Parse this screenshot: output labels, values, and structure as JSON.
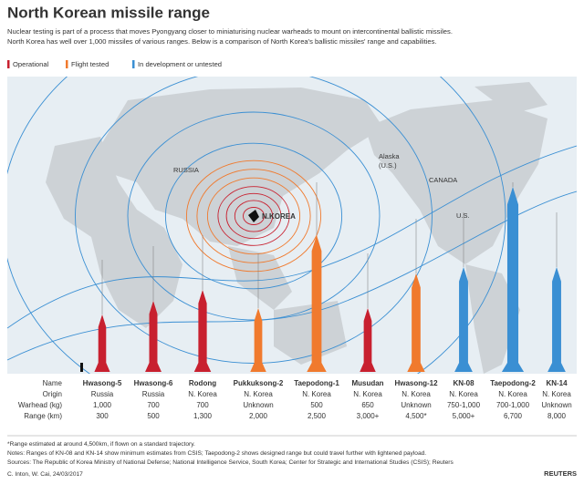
{
  "header": {
    "title": "North Korean missile range",
    "intro": [
      "Nuclear testing is part of a process that moves Pyongyang closer to miniaturising nuclear warheads to mount on intercontinental ballistic missiles.",
      "North Korea has well over 1,000 missiles of various ranges. Below is a comparison of North Korea's ballistic missiles' range and capabilities."
    ]
  },
  "legend": [
    {
      "label": "Operational",
      "color": "#c8202f"
    },
    {
      "label": "Flight tested",
      "color": "#f07a2e"
    },
    {
      "label": "In development or untested",
      "color": "#3a8fd3"
    }
  ],
  "map_labels": {
    "russia": "RUSSIA",
    "alaska": [
      "Alaska",
      "(U.S.)"
    ],
    "canada": "CANADA",
    "us": "U.S.",
    "nkorea": "N.KOREA"
  },
  "table": {
    "row_labels": [
      "Name",
      "Origin",
      "Warhead (kg)",
      "Range (km)"
    ],
    "missiles": [
      {
        "name": "Hwasong-5",
        "origin": "Russia",
        "warhead": "1,000",
        "range": "300",
        "color": "#c8202f"
      },
      {
        "name": "Hwasong-6",
        "origin": "Russia",
        "warhead": "700",
        "range": "500",
        "color": "#c8202f"
      },
      {
        "name": "Rodong",
        "origin": "N. Korea",
        "warhead": "700",
        "range": "1,300",
        "color": "#c8202f"
      },
      {
        "name": "Pukkuksong-2",
        "origin": "N. Korea",
        "warhead": "Unknown",
        "range": "2,000",
        "color": "#f07a2e"
      },
      {
        "name": "Taepodong-1",
        "origin": "N. Korea",
        "warhead": "500",
        "range": "2,500",
        "color": "#f07a2e"
      },
      {
        "name": "Musudan",
        "origin": "N. Korea",
        "warhead": "650",
        "range": "3,000+",
        "color": "#c8202f"
      },
      {
        "name": "Hwasong-12",
        "origin": "N. Korea",
        "warhead": "Unknown",
        "range": "4,500*",
        "color": "#f07a2e"
      },
      {
        "name": "KN-08",
        "origin": "N. Korea",
        "warhead": "750-1,000",
        "range": "5,000+",
        "color": "#3a8fd3"
      },
      {
        "name": "Taepodong-2",
        "origin": "N. Korea",
        "warhead": "700-1,000",
        "range": "6,700",
        "color": "#3a8fd3"
      },
      {
        "name": "KN-14",
        "origin": "N. Korea",
        "warhead": "Unknown",
        "range": "8,000",
        "color": "#3a8fd3"
      }
    ]
  },
  "footnotes": [
    "*Range estimated at around 4,500km, if flown on a standard trajectory.",
    "Notes: Ranges of KN-08 and KN-14 show minimum estimates from CSIS; Taepodong-2 shows designed range but could travel further with lightened payload.",
    "Sources: The Republic of Korea Ministry of National Defense; National Intelligence Service, South Korea; Center for Strategic and International Studies (CSIS); Reuters"
  ],
  "credit": "C. Inton,  W. Cai, 24/03/2017",
  "logo": "REUTERS"
}
